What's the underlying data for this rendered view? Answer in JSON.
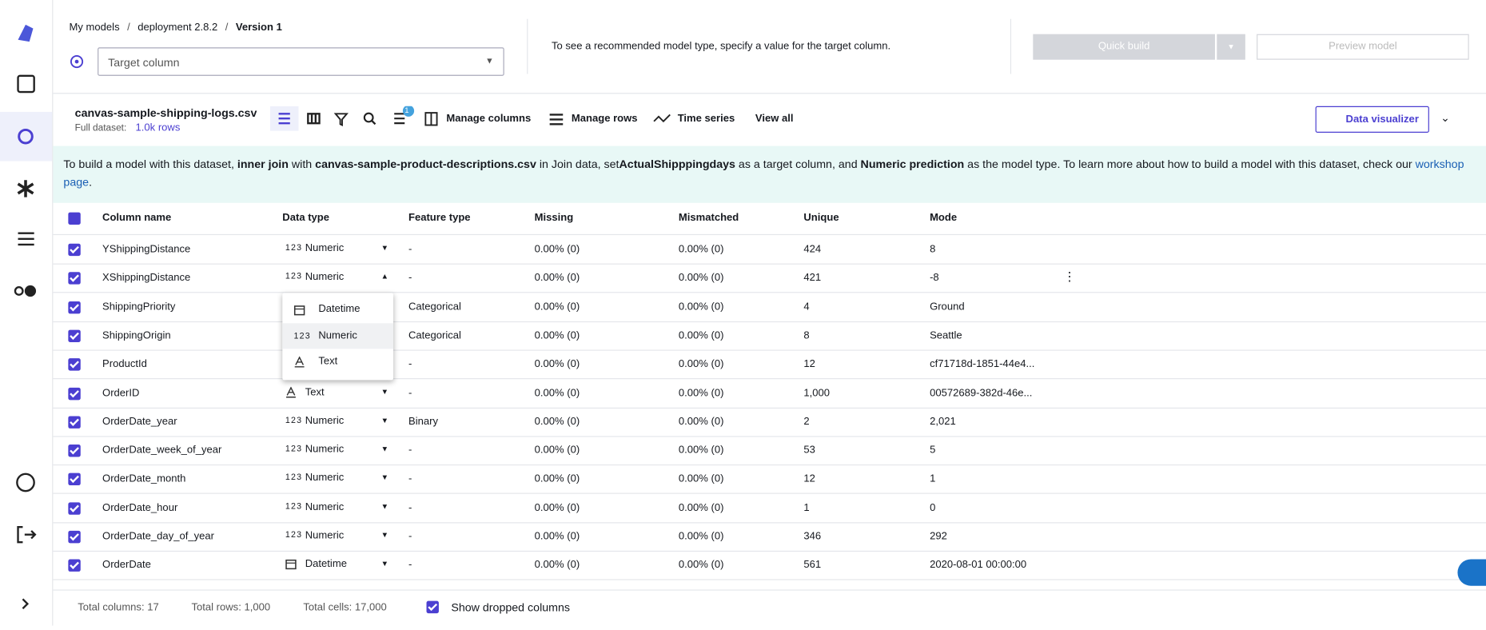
{
  "header": {
    "breadcrumb": [
      "My models",
      "deployment 2.8.2",
      "Version 1"
    ],
    "target_placeholder": "Target column",
    "message": "To see a recommended model type, specify a value for the target column.",
    "quick_build": "Quick build",
    "preview_model": "Preview model"
  },
  "toolbar": {
    "dataset_name": "canvas-sample-shipping-logs.csv",
    "full_dataset_label": "Full dataset:",
    "rows_link": "1.0k rows",
    "badge": "1",
    "manage_columns": "Manage columns",
    "manage_rows": "Manage rows",
    "time_series": "Time series",
    "view_all": "View all",
    "data_visualizer": "Data visualizer"
  },
  "banner": {
    "parts": [
      "To build a model with this dataset, ",
      "inner join",
      " with ",
      "canvas-sample-product-descriptions.csv",
      " in Join data, set",
      "ActualShipppingdays",
      " as a target column, and ",
      "Numeric prediction",
      " as the model type. To learn more about how to build a model with this dataset, check our "
    ],
    "link": "workshop page",
    "end": "."
  },
  "table": {
    "headers": [
      "Column name",
      "Data type",
      "Feature type",
      "Missing",
      "Mismatched",
      "Unique",
      "Mode"
    ],
    "numeric_icon_label": "123",
    "rows": [
      [
        "YShippingDistance",
        "numeric",
        "Numeric",
        "-",
        "0.00% (0)",
        "0.00% (0)",
        "424",
        "8"
      ],
      [
        "XShippingDistance",
        "numeric",
        "Numeric",
        "-",
        "0.00% (0)",
        "0.00% (0)",
        "421",
        "-8"
      ],
      [
        "ShippingPriority",
        null,
        null,
        "Categorical",
        "0.00% (0)",
        "0.00% (0)",
        "4",
        "Ground"
      ],
      [
        "ShippingOrigin",
        null,
        null,
        "Categorical",
        "0.00% (0)",
        "0.00% (0)",
        "8",
        "Seattle"
      ],
      [
        "ProductId",
        null,
        null,
        "-",
        "0.00% (0)",
        "0.00% (0)",
        "12",
        "cf71718d-1851-44e4..."
      ],
      [
        "OrderID",
        "text",
        "Text",
        "-",
        "0.00% (0)",
        "0.00% (0)",
        "1,000",
        "00572689-382d-46e..."
      ],
      [
        "OrderDate_year",
        "numeric",
        "Numeric",
        "Binary",
        "0.00% (0)",
        "0.00% (0)",
        "2",
        "2,021"
      ],
      [
        "OrderDate_week_of_year",
        "numeric",
        "Numeric",
        "-",
        "0.00% (0)",
        "0.00% (0)",
        "53",
        "5"
      ],
      [
        "OrderDate_month",
        "numeric",
        "Numeric",
        "-",
        "0.00% (0)",
        "0.00% (0)",
        "12",
        "1"
      ],
      [
        "OrderDate_hour",
        "numeric",
        "Numeric",
        "-",
        "0.00% (0)",
        "0.00% (0)",
        "1",
        "0"
      ],
      [
        "OrderDate_day_of_year",
        "numeric",
        "Numeric",
        "-",
        "0.00% (0)",
        "0.00% (0)",
        "346",
        "292"
      ],
      [
        "OrderDate",
        "datetime",
        "Datetime",
        "-",
        "0.00% (0)",
        "0.00% (0)",
        "561",
        "2020-08-01 00:00:00"
      ]
    ]
  },
  "dropdown": {
    "options": [
      [
        "datetime",
        "Datetime"
      ],
      [
        "numeric",
        "Numeric"
      ],
      [
        "text",
        "Text"
      ]
    ]
  },
  "footer": {
    "total_columns": "Total columns: 17",
    "total_rows": "Total rows: 1,000",
    "total_cells": "Total cells: 17,000",
    "show_dropped": "Show dropped columns"
  }
}
